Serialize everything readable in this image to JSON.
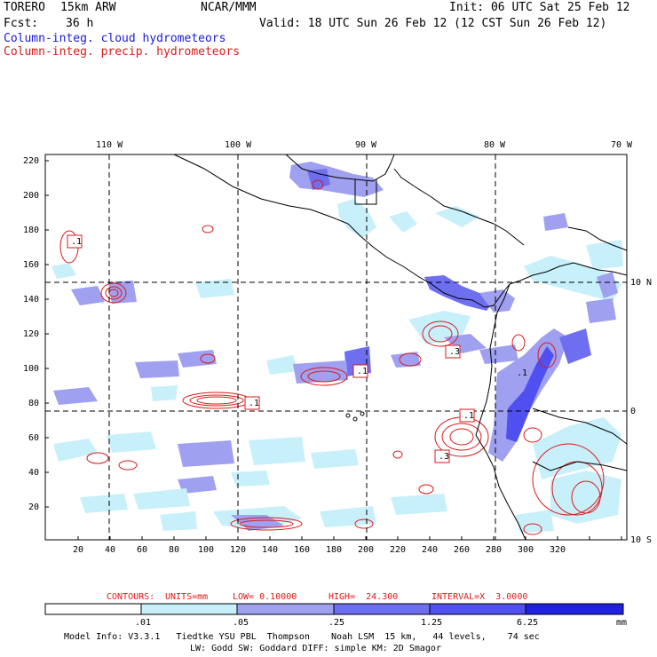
{
  "header": {
    "model": "TORERO",
    "resolution": "15km ARW",
    "center": "NCAR/MMM",
    "init": "Init: 06 UTC Sat 25 Feb 12",
    "fcst_label": "Fcst:",
    "fcst_value": "36 h",
    "valid": "Valid: 18 UTC Sun 26 Feb 12 (12 CST Sun 26 Feb 12)",
    "field1": "Column-integ. cloud hydrometeors",
    "field2": "Column-integ. precip. hydrometeors"
  },
  "colors": {
    "cloud_field": "#1a1adc",
    "precip_field": "#dc1a1a",
    "shade_light": "#c8f0fa",
    "shade_mid": "#a0a0f0",
    "shade_dark": "#5050f0",
    "shade_darkest": "#2020e0"
  },
  "axes": {
    "top_lon_labels": [
      "110 W",
      "100 W",
      "90 W",
      "80 W",
      "70 W"
    ],
    "right_lat_labels": [
      "10 N",
      "0",
      "10 S"
    ],
    "left_grid_labels": [
      "220",
      "200",
      "180",
      "160",
      "140",
      "120",
      "100",
      "80",
      "60",
      "40",
      "20"
    ],
    "bottom_grid_labels": [
      "20",
      "40",
      "60",
      "80",
      "100",
      "120",
      "140",
      "160",
      "180",
      "200",
      "220",
      "240",
      "260",
      "280",
      "300",
      "320"
    ]
  },
  "contour_labels": [
    ".1",
    ".1",
    ".3",
    ".1",
    ".1",
    ".3",
    ".1"
  ],
  "contours_info": {
    "prefix": "CONTOURS:",
    "units": "UNITS=mm",
    "low": "LOW= 0.10000",
    "high": "HIGH=  24.300",
    "interval": "INTERVAL=X  3.0000"
  },
  "colorbar": {
    "ticks": [
      ".01",
      ".05",
      ".25",
      "1.25",
      "6.25"
    ],
    "unit": "mm",
    "colors": [
      "#ffffff",
      "#c8f0fa",
      "#a0a0f0",
      "#6e6ef0",
      "#5050f0",
      "#2020e0"
    ]
  },
  "footer": {
    "line1": "Model Info: V3.3.1   Tiedtke YSU PBL  Thompson    Noah LSM  15 km,   44 levels,    74 sec",
    "line2": "LW: Godd SW: Goddard DIFF: simple KM: 2D Smagor"
  }
}
